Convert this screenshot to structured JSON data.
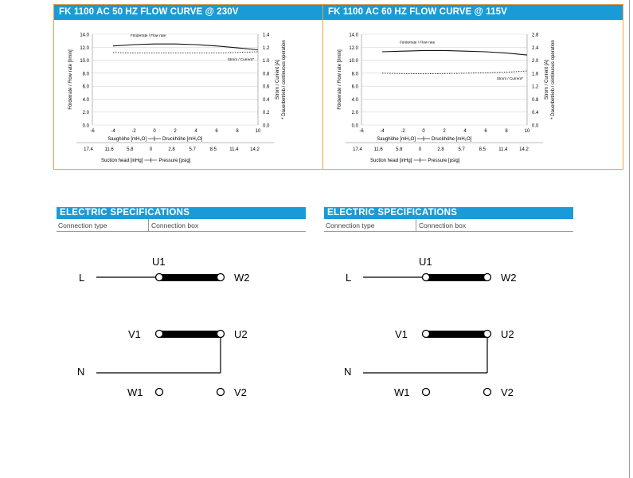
{
  "panels": [
    {
      "title": "FK 1100 AC 50 HZ FLOW CURVE @ 230V",
      "chart_data": {
        "type": "line",
        "x": [
          -4,
          -2,
          0,
          2,
          4,
          6,
          8,
          10
        ],
        "series": [
          {
            "name": "Förderrate / Flow rate",
            "axis": "left",
            "values": [
              12.2,
              12.4,
              12.5,
              12.5,
              12.4,
              12.2,
              11.9,
              11.6
            ]
          },
          {
            "name": "Strom / Current*",
            "axis": "right",
            "values": [
              1.12,
              1.11,
              1.11,
              1.11,
              1.11,
              1.11,
              1.12,
              1.13
            ]
          }
        ],
        "ylabel": "Förderrate / Flow rate [l/min]",
        "y2label": "Strom / Current [A]",
        "y2note": "* Dauerbetrieb / continuous operation",
        "ylim": [
          0,
          14
        ],
        "y2lim": [
          0,
          1.4
        ],
        "yticks": [
          "14.0",
          "12.0",
          "10.0",
          "8.0",
          "6.0",
          "4.0",
          "2.0",
          "0.0"
        ],
        "y2ticks": [
          "1.4",
          "1.2",
          "1.0",
          "0.8",
          "0.6",
          "0.4",
          "0.2",
          "0.0"
        ],
        "xticks": [
          "-6",
          "-4",
          "-2",
          "0",
          "2",
          "4",
          "6",
          "8",
          "10"
        ],
        "xlim": [
          -6,
          10
        ],
        "x_left_label": "Saughöhe [mH₂O]",
        "x_right_label": "Druckhöhe [mH₂O]",
        "x2ticks": [
          "17.4",
          "11.6",
          "5.8",
          "0",
          "2.8",
          "5.7",
          "8.5",
          "11.4",
          "14.2"
        ],
        "x2_left_label": "Suction head [inHg]",
        "x2_right_label": "Pressure [psig]",
        "grid": true
      }
    },
    {
      "title": "FK 1100 AC 60 HZ FLOW CURVE @ 115V",
      "chart_data": {
        "type": "line",
        "x": [
          -4,
          -2,
          0,
          2,
          4,
          6,
          8,
          10
        ],
        "series": [
          {
            "name": "Förderrate / Flow rate",
            "axis": "left",
            "values": [
              11.3,
              11.4,
              11.5,
              11.5,
              11.4,
              11.3,
              11.1,
              10.8
            ]
          },
          {
            "name": "Strom / Current*",
            "axis": "right",
            "values": [
              1.6,
              1.59,
              1.58,
              1.59,
              1.6,
              1.61,
              1.63,
              1.67
            ]
          }
        ],
        "ylabel": "Förderrate / Flow rate [l/min]",
        "y2label": "Strom / Current [A]",
        "y2note": "* Dauerbetrieb / continuous operation",
        "ylim": [
          0,
          14
        ],
        "y2lim": [
          0,
          2.8
        ],
        "yticks": [
          "14.0",
          "12.0",
          "10.0",
          "8.0",
          "6.0",
          "4.0",
          "2.0",
          "0.0"
        ],
        "y2ticks": [
          "2.8",
          "2.4",
          "2.0",
          "1.6",
          "1.2",
          "0.8",
          "0.4",
          "0.0"
        ],
        "xticks": [
          "-6",
          "-4",
          "-2",
          "0",
          "2",
          "4",
          "6",
          "8",
          "10"
        ],
        "xlim": [
          -6,
          10
        ],
        "x_left_label": "Saughöhe [mH₂O]",
        "x_right_label": "Druckhöhe [mH₂O]",
        "x2ticks": [
          "17.4",
          "11.6",
          "5.8",
          "0",
          "2.8",
          "5.7",
          "8.5",
          "11.4",
          "14.2"
        ],
        "x2_left_label": "Suction head [inHg]",
        "x2_right_label": "Pressure [psig]",
        "grid": true
      }
    }
  ],
  "specs": [
    {
      "title": "ELECTRIC SPECIFICATIONS",
      "col1": "Connection type",
      "col2": "Connection box"
    },
    {
      "title": "ELECTRIC SPECIFICATIONS",
      "col1": "Connection type",
      "col2": "Connection box"
    }
  ],
  "wiring": [
    {
      "L": "L",
      "U1": "U1",
      "W2": "W2",
      "V1": "V1",
      "U2": "U2",
      "N": "N",
      "W1": "W1",
      "V2": "V2"
    },
    {
      "L": "L",
      "U1": "U1",
      "W2": "W2",
      "V1": "V1",
      "U2": "U2",
      "N": "N",
      "W1": "W1",
      "V2": "V2"
    }
  ],
  "colors": {
    "accent": "#1a9bd7",
    "border": "#f0a040"
  }
}
